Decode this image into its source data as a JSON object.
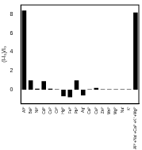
{
  "chart_data": {
    "type": "bar",
    "y_label": "(I-I₀)/I₀",
    "categories": [
      "Al³⁺",
      "Ba²⁺",
      "Ni²⁺",
      "Cd²⁺",
      "Co²⁺",
      "Cr³⁺",
      "Hg²⁺",
      "Fe³⁺",
      "Pb²⁺",
      "Ag⁺",
      "Ca²⁺",
      "Cu²⁺",
      "Zn²⁺",
      "Mn²⁺",
      "Mg²⁺",
      "Na⁺",
      "K⁺",
      "Al³⁺+Na⁺+Ca²⁺+K⁺+Mg²⁺"
    ],
    "values": [
      8.4,
      1.0,
      0.1,
      0.9,
      0.1,
      0.05,
      -0.7,
      -0.8,
      1.0,
      -0.6,
      0.05,
      0.2,
      0.05,
      0.05,
      0.05,
      0.05,
      0.05,
      8.2
    ],
    "color": "#000000",
    "ylim": [
      -1.5,
      9
    ],
    "yticks": [
      0,
      2,
      4,
      6,
      8
    ],
    "grid": false
  }
}
